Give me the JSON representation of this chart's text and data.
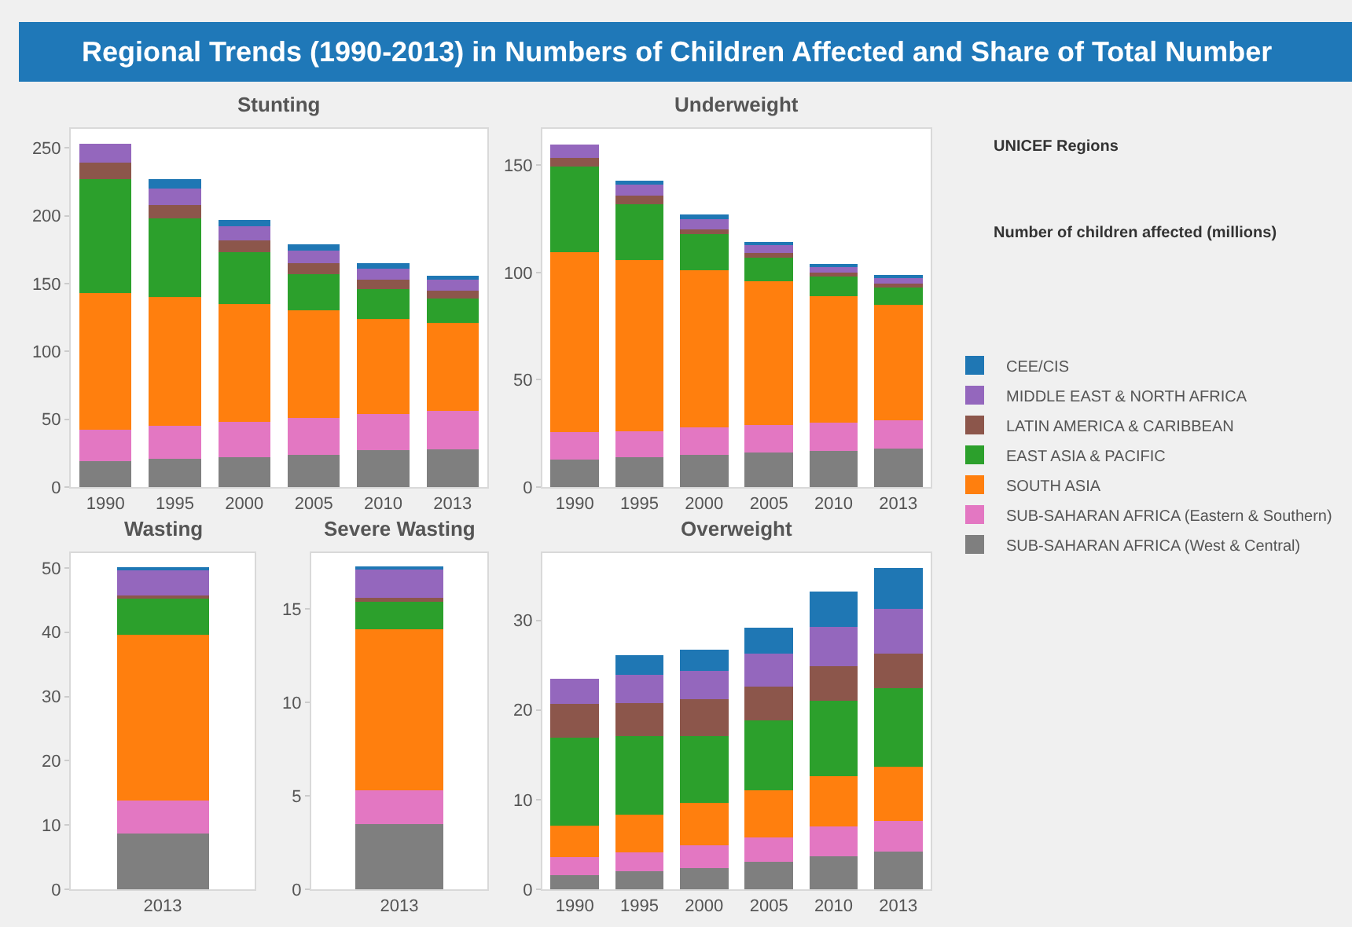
{
  "chart_data": [
    {
      "type": "bar",
      "title": "Stunting",
      "annotations": [
        "Regional Trends (1990-2013) in Numbers of Children Affected and Share of Total Number"
      ],
      "ylabel": "Number of children affected (millions)",
      "legend_title": "UNICEF Regions",
      "legend": "right",
      "stacked": true,
      "categories": [
        "1990",
        "1995",
        "2000",
        "2005",
        "2010",
        "2013"
      ],
      "ylim": [
        0,
        264
      ],
      "yticks": [
        0,
        50,
        100,
        150,
        200,
        250
      ],
      "series": [
        {
          "name": "SUB-SAHARAN AFRICA (West & Central)",
          "color": "#7f7f7f",
          "values": [
            19,
            21,
            22,
            24,
            27,
            28
          ]
        },
        {
          "name": "SUB-SAHARAN AFRICA (Eastern & Southern)",
          "color": "#e377c2",
          "values": [
            23,
            24,
            26,
            27,
            27,
            28
          ]
        },
        {
          "name": "SOUTH ASIA",
          "color": "#ff7f0e",
          "values": [
            101,
            95,
            87,
            79,
            70,
            65
          ]
        },
        {
          "name": "EAST ASIA & PACIFIC",
          "color": "#2ca02c",
          "values": [
            84,
            58,
            38,
            27,
            22,
            18
          ]
        },
        {
          "name": "LATIN AMERICA & CARIBBEAN",
          "color": "#8c564b",
          "values": [
            12,
            10,
            9,
            8,
            7,
            6
          ]
        },
        {
          "name": "MIDDLE EAST & NORTH AFRICA",
          "color": "#9467bd",
          "values": [
            14,
            12,
            10,
            9,
            8,
            8
          ]
        },
        {
          "name": "CEE/CIS",
          "color": "#1f77b4",
          "values": [
            null,
            7,
            5,
            5,
            4,
            3
          ]
        }
      ]
    },
    {
      "type": "bar",
      "title": "Underweight",
      "stacked": true,
      "categories": [
        "1990",
        "1995",
        "2000",
        "2005",
        "2010",
        "2013"
      ],
      "ylim": [
        0,
        167
      ],
      "yticks": [
        0,
        50,
        100,
        150
      ],
      "series": [
        {
          "color": "#7f7f7f",
          "values": [
            13,
            14,
            15,
            16,
            17,
            18
          ]
        },
        {
          "color": "#e377c2",
          "values": [
            12.5,
            12,
            13,
            13,
            13,
            13
          ]
        },
        {
          "color": "#ff7f0e",
          "values": [
            84,
            80,
            73,
            67,
            59,
            54
          ]
        },
        {
          "color": "#2ca02c",
          "values": [
            40,
            26,
            17,
            11,
            9,
            8
          ]
        },
        {
          "color": "#8c564b",
          "values": [
            4,
            4,
            2,
            2,
            2,
            2
          ]
        },
        {
          "color": "#9467bd",
          "values": [
            6,
            5,
            5,
            4,
            3,
            3
          ]
        },
        {
          "color": "#1f77b4",
          "values": [
            null,
            2,
            2,
            1,
            1,
            1
          ]
        }
      ]
    },
    {
      "type": "bar",
      "title": "Wasting",
      "stacked": true,
      "categories": [
        "2013"
      ],
      "ylim": [
        0,
        52.3
      ],
      "yticks": [
        0,
        10,
        20,
        30,
        40,
        50
      ],
      "series": [
        {
          "color": "#7f7f7f",
          "values": [
            8.7
          ]
        },
        {
          "color": "#e377c2",
          "values": [
            5.1
          ]
        },
        {
          "color": "#ff7f0e",
          "values": [
            25.8
          ]
        },
        {
          "color": "#2ca02c",
          "values": [
            5.6
          ]
        },
        {
          "color": "#8c564b",
          "values": [
            0.5
          ]
        },
        {
          "color": "#9467bd",
          "values": [
            4.0
          ]
        },
        {
          "color": "#1f77b4",
          "values": [
            0.3
          ]
        }
      ]
    },
    {
      "type": "bar",
      "title": "Severe Wasting",
      "stacked": true,
      "categories": [
        "2013"
      ],
      "ylim": [
        0,
        18
      ],
      "yticks": [
        0,
        5,
        10,
        15
      ],
      "series": [
        {
          "color": "#7f7f7f",
          "values": [
            3.5
          ]
        },
        {
          "color": "#e377c2",
          "values": [
            1.8
          ]
        },
        {
          "color": "#ff7f0e",
          "values": [
            8.6
          ]
        },
        {
          "color": "#2ca02c",
          "values": [
            1.5
          ]
        },
        {
          "color": "#8c564b",
          "values": [
            0.2
          ]
        },
        {
          "color": "#9467bd",
          "values": [
            1.5
          ]
        },
        {
          "color": "#1f77b4",
          "values": [
            0.2
          ]
        }
      ]
    },
    {
      "type": "bar",
      "title": "Overweight",
      "stacked": true,
      "categories": [
        "1990",
        "1995",
        "2000",
        "2005",
        "2010",
        "2013"
      ],
      "ylim": [
        0,
        37.5
      ],
      "yticks": [
        0,
        10,
        20,
        30
      ],
      "series": [
        {
          "color": "#7f7f7f",
          "values": [
            1.6,
            2.0,
            2.4,
            3.1,
            3.7,
            4.2
          ]
        },
        {
          "color": "#e377c2",
          "values": [
            2.0,
            2.1,
            2.5,
            2.7,
            3.3,
            3.4
          ]
        },
        {
          "color": "#ff7f0e",
          "values": [
            3.5,
            4.2,
            4.7,
            5.2,
            5.6,
            6.1
          ]
        },
        {
          "color": "#2ca02c",
          "values": [
            9.8,
            8.8,
            7.5,
            7.8,
            8.4,
            8.7
          ]
        },
        {
          "color": "#8c564b",
          "values": [
            3.8,
            3.7,
            4.1,
            3.8,
            3.9,
            3.9
          ]
        },
        {
          "color": "#9467bd",
          "values": [
            2.8,
            3.1,
            3.2,
            3.7,
            4.4,
            5.0
          ]
        },
        {
          "color": "#1f77b4",
          "values": [
            null,
            2.2,
            2.3,
            2.9,
            3.9,
            4.5
          ]
        }
      ]
    }
  ]
}
